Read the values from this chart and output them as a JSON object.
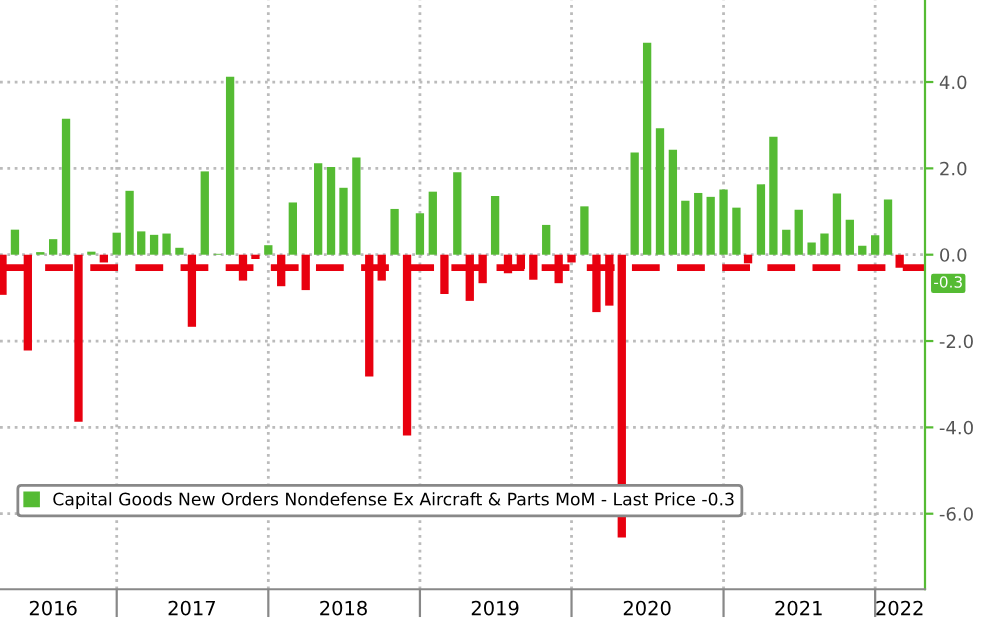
{
  "chart_data": {
    "type": "bar",
    "x": [
      "2016-04",
      "2016-05",
      "2016-06",
      "2016-07",
      "2016-08",
      "2016-09",
      "2016-10",
      "2016-11",
      "2016-12",
      "2017-01",
      "2017-02",
      "2017-03",
      "2017-04",
      "2017-05",
      "2017-06",
      "2017-07",
      "2017-08",
      "2017-09",
      "2017-10",
      "2017-11",
      "2017-12",
      "2018-01",
      "2018-02",
      "2018-03",
      "2018-04",
      "2018-05",
      "2018-06",
      "2018-07",
      "2018-08",
      "2018-09",
      "2018-10",
      "2018-11",
      "2018-12",
      "2019-01",
      "2019-02",
      "2019-03",
      "2019-04",
      "2019-05",
      "2019-06",
      "2019-07",
      "2019-08",
      "2019-09",
      "2019-10",
      "2019-11",
      "2019-12",
      "2020-01",
      "2020-02",
      "2020-03",
      "2020-04",
      "2020-05",
      "2020-06",
      "2020-07",
      "2020-08",
      "2020-09",
      "2020-10",
      "2020-11",
      "2020-12",
      "2021-01",
      "2021-02",
      "2021-03",
      "2021-04",
      "2021-05",
      "2021-06",
      "2021-07",
      "2021-08",
      "2021-09",
      "2021-10",
      "2021-11",
      "2021-12",
      "2022-01",
      "2022-02",
      "2022-03"
    ],
    "series": [
      {
        "name": "Capital Goods New Orders Nondefense Ex Aircraft & Parts MoM - Last Price -0.3",
        "color": "#55bb33",
        "values": [
          -0.93,
          0.58,
          -2.22,
          0.06,
          0.36,
          3.15,
          -3.87,
          0.07,
          -0.18,
          0.51,
          1.48,
          0.54,
          0.46,
          0.49,
          0.16,
          -1.67,
          1.93,
          0.02,
          4.12,
          -0.6,
          -0.1,
          0.22,
          -0.73,
          1.21,
          -0.82,
          2.12,
          2.03,
          1.55,
          2.25,
          -2.82,
          -0.6,
          1.06,
          -4.19,
          0.96,
          1.46,
          -0.91,
          1.91,
          -1.07,
          -0.66,
          1.36,
          -0.43,
          -0.33,
          -0.58,
          0.69,
          -0.66,
          -0.18,
          1.12,
          -1.33,
          -1.18,
          -6.55,
          2.37,
          4.91,
          2.93,
          2.43,
          1.25,
          1.43,
          1.34,
          1.51,
          1.09,
          -0.2,
          1.63,
          2.73,
          0.58,
          1.04,
          0.28,
          0.49,
          1.42,
          0.81,
          0.21,
          0.45,
          1.28,
          -0.3
        ],
        "colors": [
          "#e8000f",
          "#55bb33",
          "#e8000f",
          "#55bb33",
          "#55bb33",
          "#55bb33",
          "#e8000f",
          "#55bb33",
          "#e8000f",
          "#55bb33",
          "#55bb33",
          "#55bb33",
          "#55bb33",
          "#55bb33",
          "#55bb33",
          "#e8000f",
          "#55bb33",
          "#55bb33",
          "#55bb33",
          "#e8000f",
          "#e8000f",
          "#55bb33",
          "#e8000f",
          "#55bb33",
          "#e8000f",
          "#55bb33",
          "#55bb33",
          "#55bb33",
          "#55bb33",
          "#e8000f",
          "#e8000f",
          "#55bb33",
          "#e8000f",
          "#55bb33",
          "#55bb33",
          "#e8000f",
          "#55bb33",
          "#e8000f",
          "#e8000f",
          "#55bb33",
          "#e8000f",
          "#e8000f",
          "#e8000f",
          "#55bb33",
          "#e8000f",
          "#e8000f",
          "#55bb33",
          "#e8000f",
          "#e8000f",
          "#e8000f",
          "#55bb33",
          "#55bb33",
          "#55bb33",
          "#55bb33",
          "#55bb33",
          "#55bb33",
          "#55bb33",
          "#55bb33",
          "#55bb33",
          "#e8000f",
          "#55bb33",
          "#55bb33",
          "#55bb33",
          "#55bb33",
          "#55bb33",
          "#55bb33",
          "#55bb33",
          "#55bb33",
          "#55bb33",
          "#55bb33",
          "#55bb33",
          "#e8000f"
        ]
      }
    ],
    "xlim": [
      "2016-03-26",
      "2022-05-01"
    ],
    "xticks": [
      {
        "value": "2017-01-01",
        "label": null
      },
      {
        "value": "2018-01-01",
        "label": null
      },
      {
        "value": "2019-01-01",
        "label": null
      },
      {
        "value": "2020-01-01",
        "label": null
      },
      {
        "value": "2021-01-01",
        "label": null
      },
      {
        "value": "2022-01-01",
        "label": null
      },
      {
        "value": "2016-08-01",
        "label": "2016"
      },
      {
        "value": "2017-07-01",
        "label": "2017"
      },
      {
        "value": "2018-07-01",
        "label": "2018"
      },
      {
        "value": "2019-07-01",
        "label": "2019"
      },
      {
        "value": "2020-07-01",
        "label": "2020"
      },
      {
        "value": "2021-07-01",
        "label": "2021"
      },
      {
        "value": "2022-03-01",
        "label": "2022"
      }
    ],
    "ylim": [
      -7.75,
      5.9
    ],
    "yticks": [
      {
        "value": -6,
        "label": "-6.0"
      },
      {
        "value": -4,
        "label": "-4.0"
      },
      {
        "value": -2,
        "label": "-2.0"
      },
      {
        "value": 0,
        "label": "0.0"
      },
      {
        "value": 2,
        "label": "2.0"
      },
      {
        "value": 4,
        "label": "4.0"
      }
    ],
    "ref_lines": [
      {
        "axis": "y",
        "value": -0.3,
        "label": "-0.3",
        "color": "#e8000f",
        "line_style": "dashed"
      }
    ],
    "grid": true,
    "legend": "bottom left"
  }
}
